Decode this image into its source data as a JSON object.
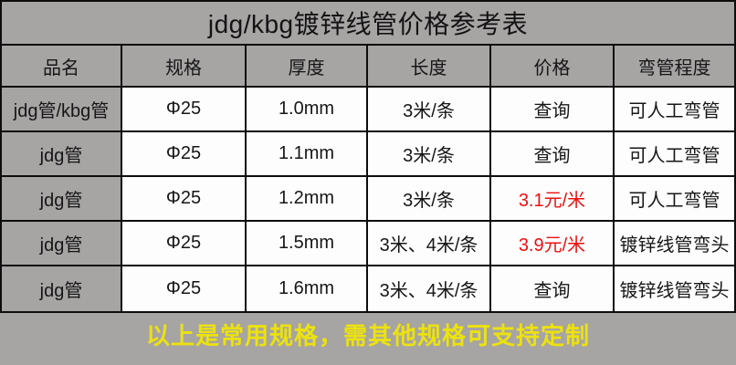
{
  "title": "jdg/kbg镀锌线管价格参考表",
  "columns": {
    "name": "品名",
    "spec": "规格",
    "thickness": "厚度",
    "length": "长度",
    "price": "价格",
    "bend": "弯管程度"
  },
  "rows": [
    {
      "name": "jdg管/kbg管",
      "spec": "Φ25",
      "thickness": "1.0mm",
      "length": "3米/条",
      "price": "查询",
      "price_is_red": false,
      "bend": "可人工弯管"
    },
    {
      "name": "jdg管",
      "spec": "Φ25",
      "thickness": "1.1mm",
      "length": "3米/条",
      "price": "查询",
      "price_is_red": false,
      "bend": "可人工弯管"
    },
    {
      "name": "jdg管",
      "spec": "Φ25",
      "thickness": "1.2mm",
      "length": "3米/条",
      "price": "3.1元/米",
      "price_is_red": true,
      "bend": "可人工弯管"
    },
    {
      "name": "jdg管",
      "spec": "Φ25",
      "thickness": "1.5mm",
      "length": "3米、4米/条",
      "price": "3.9元/米",
      "price_is_red": true,
      "bend": "镀锌线管弯头"
    },
    {
      "name": "jdg管",
      "spec": "Φ25",
      "thickness": "1.6mm",
      "length": "3米、4米/条",
      "price": "查询",
      "price_is_red": false,
      "bend": "镀锌线管弯头"
    }
  ],
  "footer": {
    "text": "以上是常用规格，需其他规格可支持定制"
  },
  "colors": {
    "background_gray": "#a7a4a4",
    "cell_white": "#fdfdfd",
    "border_black": "#0d0d0d",
    "text_black": "#161616",
    "price_red": "#ee1010",
    "footer_yellow": "#ece20e"
  }
}
